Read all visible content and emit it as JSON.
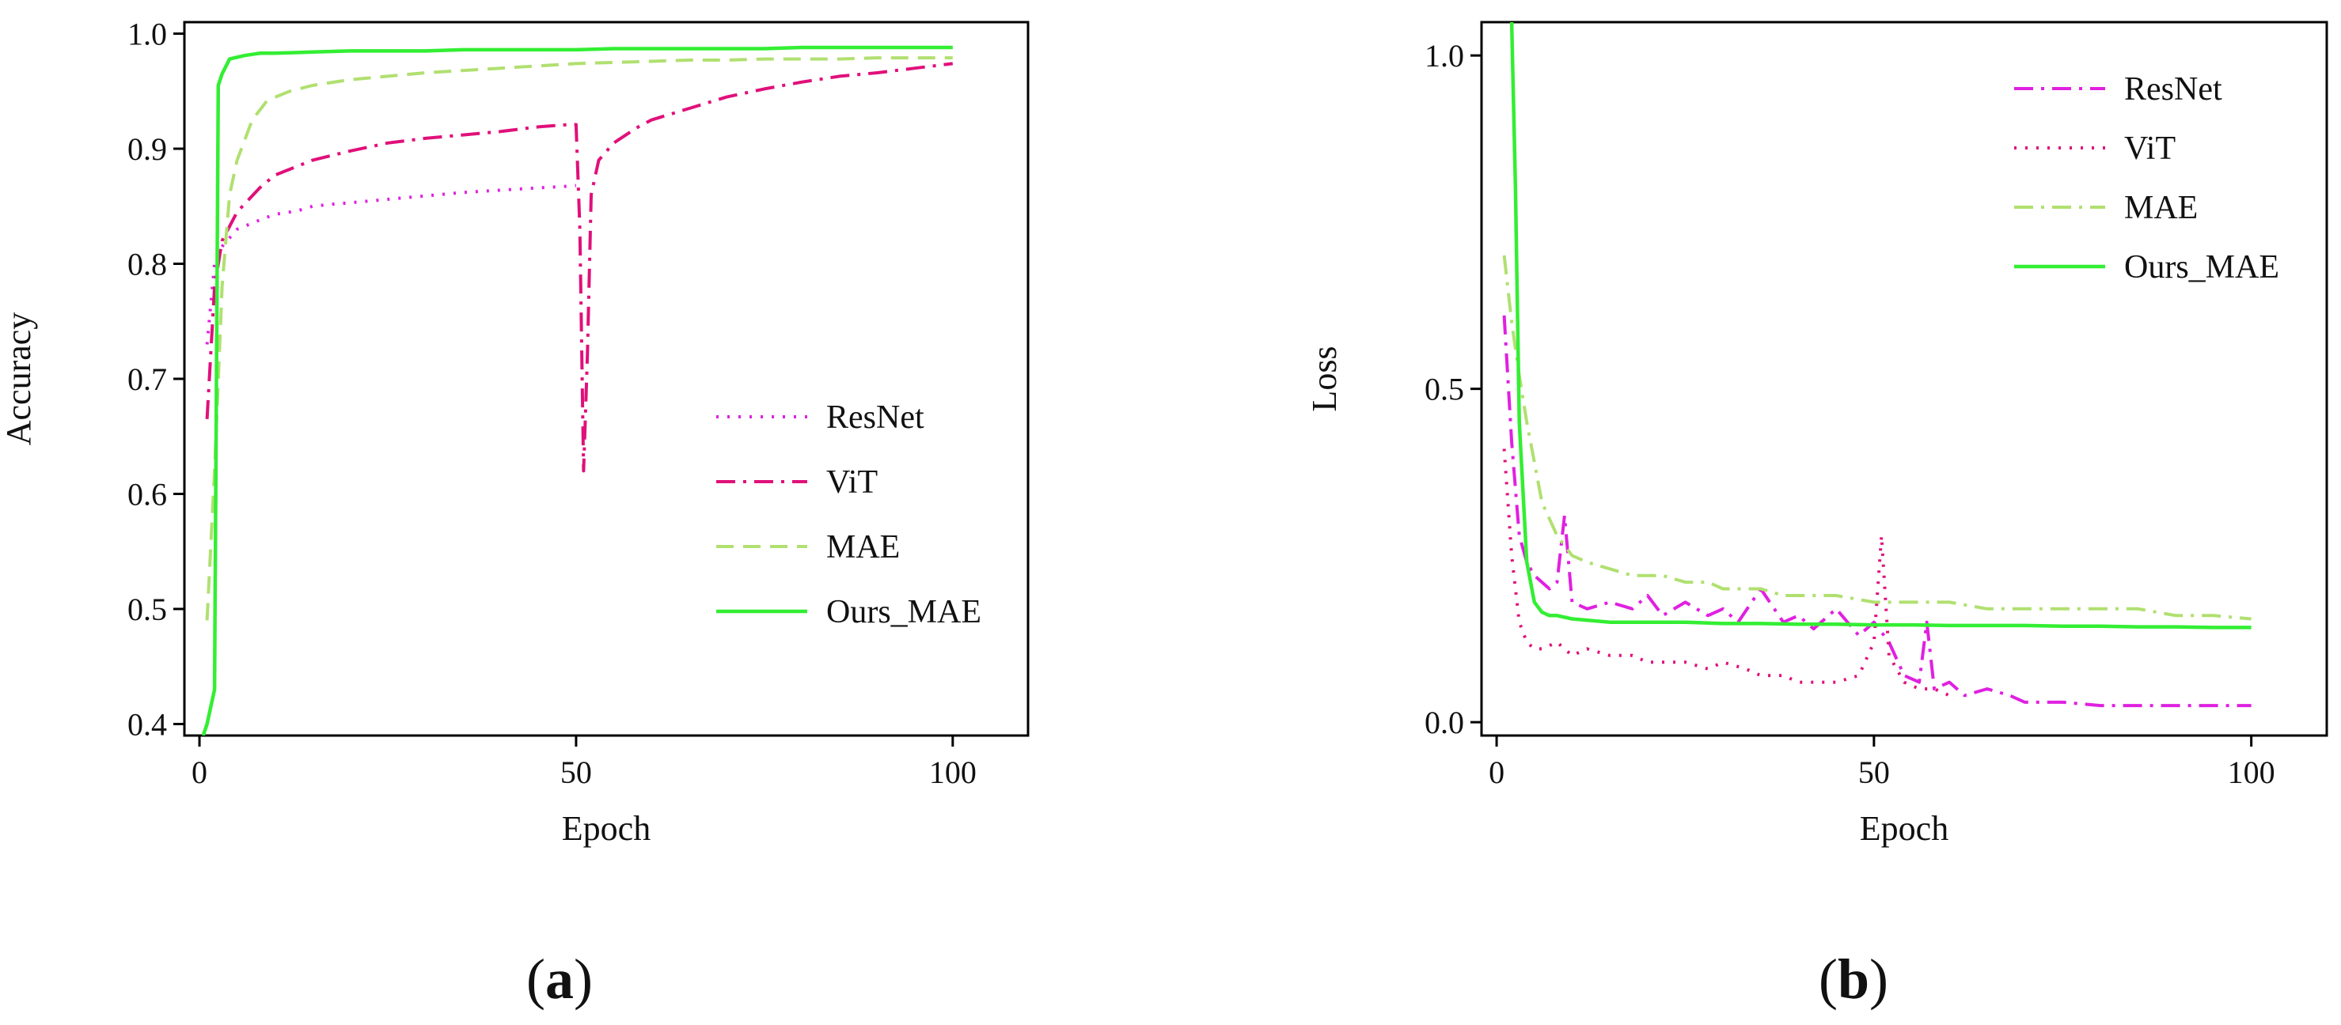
{
  "colors": {
    "resnet": "#e020e0",
    "vit": "#e0107a",
    "mae": "#b0e070",
    "ours": "#33ee33",
    "axis": "#000000"
  },
  "chart_data": [
    {
      "type": "line",
      "panel_label": {
        "open": "(",
        "letter": "a",
        "close": ")"
      },
      "xlabel": "Epoch",
      "ylabel": "Accuracy",
      "xlim": [
        -2,
        110
      ],
      "ylim": [
        0.39,
        1.01
      ],
      "xticks": [
        0,
        50,
        100
      ],
      "yticks": [
        0.4,
        0.5,
        0.6,
        0.7,
        0.8,
        0.9,
        1.0
      ],
      "ytick_labels": [
        "0.4",
        "0.5",
        "0.6",
        "0.7",
        "0.8",
        "0.9",
        "1.0"
      ],
      "legend_position": "center-right",
      "series": [
        {
          "name": "ResNet",
          "key": "resnet",
          "dash": "dot",
          "x": [
            1,
            2,
            3,
            5,
            8,
            10,
            13,
            15,
            18,
            20,
            25,
            30,
            35,
            40,
            45,
            48,
            50
          ],
          "y": [
            0.73,
            0.8,
            0.815,
            0.83,
            0.838,
            0.843,
            0.846,
            0.85,
            0.852,
            0.853,
            0.856,
            0.859,
            0.862,
            0.864,
            0.866,
            0.867,
            0.868
          ]
        },
        {
          "name": "ViT",
          "key": "vit",
          "dash": "dashdot",
          "x": [
            1,
            2,
            3,
            5,
            8,
            10,
            15,
            20,
            25,
            30,
            35,
            40,
            45,
            49,
            50,
            50.5,
            51,
            51.5,
            52,
            53,
            55,
            58,
            60,
            65,
            70,
            75,
            80,
            85,
            90,
            95,
            100
          ],
          "y": [
            0.665,
            0.78,
            0.82,
            0.845,
            0.866,
            0.877,
            0.89,
            0.898,
            0.905,
            0.909,
            0.912,
            0.915,
            0.919,
            0.921,
            0.921,
            0.83,
            0.62,
            0.72,
            0.86,
            0.89,
            0.905,
            0.918,
            0.925,
            0.935,
            0.945,
            0.952,
            0.958,
            0.963,
            0.966,
            0.97,
            0.974
          ]
        },
        {
          "name": "MAE",
          "key": "mae",
          "dash": "dash",
          "x": [
            1,
            2,
            3,
            4,
            5,
            7,
            9,
            12,
            15,
            20,
            25,
            30,
            35,
            40,
            45,
            50,
            55,
            60,
            65,
            70,
            75,
            80,
            85,
            90,
            95,
            100
          ],
          "y": [
            0.49,
            0.62,
            0.78,
            0.86,
            0.89,
            0.925,
            0.942,
            0.95,
            0.955,
            0.96,
            0.963,
            0.966,
            0.968,
            0.97,
            0.972,
            0.974,
            0.975,
            0.976,
            0.977,
            0.977,
            0.978,
            0.978,
            0.978,
            0.979,
            0.979,
            0.979
          ]
        },
        {
          "name": "Ours_MAE",
          "key": "ours",
          "dash": "solid",
          "x": [
            0.5,
            1,
            2,
            2.5,
            3,
            4,
            6,
            8,
            10,
            15,
            20,
            25,
            30,
            35,
            40,
            45,
            50,
            55,
            60,
            65,
            70,
            75,
            80,
            85,
            90,
            95,
            100
          ],
          "y": [
            0.39,
            0.4,
            0.43,
            0.955,
            0.965,
            0.978,
            0.981,
            0.983,
            0.983,
            0.984,
            0.985,
            0.985,
            0.985,
            0.986,
            0.986,
            0.986,
            0.986,
            0.987,
            0.987,
            0.987,
            0.987,
            0.987,
            0.988,
            0.988,
            0.988,
            0.988,
            0.988
          ]
        }
      ]
    },
    {
      "type": "line",
      "panel_label": {
        "open": "(",
        "letter": "b",
        "close": ")"
      },
      "xlabel": "Epoch",
      "ylabel": "Loss",
      "xlim": [
        -2,
        110
      ],
      "ylim": [
        -0.02,
        1.05
      ],
      "xticks": [
        0,
        50,
        100
      ],
      "yticks": [
        0.0,
        0.5,
        1.0
      ],
      "ytick_labels": [
        "0.0",
        "0.5",
        "1.0"
      ],
      "legend_position": "top-right",
      "series": [
        {
          "name": "ResNet",
          "key": "resnet",
          "dash": "dashdot",
          "x": [
            1,
            2,
            3,
            4,
            5,
            6,
            7,
            8,
            9,
            10,
            12,
            15,
            18,
            20,
            22,
            25,
            28,
            30,
            32,
            35,
            38,
            40,
            42,
            45,
            48,
            50,
            52,
            54,
            56,
            57,
            58,
            60,
            62,
            65,
            68,
            70,
            75,
            80,
            85,
            90,
            95,
            100
          ],
          "y": [
            0.61,
            0.42,
            0.28,
            0.24,
            0.22,
            0.21,
            0.2,
            0.21,
            0.31,
            0.18,
            0.17,
            0.18,
            0.17,
            0.19,
            0.16,
            0.18,
            0.16,
            0.17,
            0.15,
            0.2,
            0.15,
            0.16,
            0.14,
            0.17,
            0.13,
            0.15,
            0.12,
            0.07,
            0.06,
            0.15,
            0.05,
            0.06,
            0.04,
            0.05,
            0.04,
            0.03,
            0.03,
            0.025,
            0.025,
            0.025,
            0.025,
            0.025
          ]
        },
        {
          "name": "ViT",
          "key": "vit",
          "dash": "dot",
          "x": [
            1,
            2,
            3,
            4,
            5,
            6,
            8,
            10,
            12,
            15,
            18,
            20,
            22,
            25,
            28,
            30,
            33,
            35,
            38,
            40,
            43,
            45,
            48,
            50,
            51,
            52,
            54,
            56,
            58,
            60
          ],
          "y": [
            0.41,
            0.25,
            0.15,
            0.12,
            0.11,
            0.11,
            0.12,
            0.1,
            0.11,
            0.1,
            0.1,
            0.09,
            0.09,
            0.09,
            0.08,
            0.09,
            0.08,
            0.07,
            0.07,
            0.06,
            0.06,
            0.06,
            0.07,
            0.12,
            0.28,
            0.1,
            0.06,
            0.05,
            0.05,
            0.04
          ]
        },
        {
          "name": "MAE",
          "key": "mae",
          "dash": "dashdot",
          "x": [
            1,
            2,
            3,
            4,
            5,
            6,
            8,
            10,
            12,
            15,
            18,
            20,
            22,
            25,
            28,
            30,
            33,
            35,
            38,
            40,
            45,
            50,
            55,
            60,
            65,
            70,
            75,
            80,
            85,
            90,
            95,
            100
          ],
          "y": [
            0.7,
            0.6,
            0.52,
            0.45,
            0.39,
            0.33,
            0.28,
            0.25,
            0.24,
            0.23,
            0.22,
            0.22,
            0.22,
            0.21,
            0.21,
            0.2,
            0.2,
            0.2,
            0.19,
            0.19,
            0.19,
            0.18,
            0.18,
            0.18,
            0.17,
            0.17,
            0.17,
            0.17,
            0.17,
            0.16,
            0.16,
            0.155
          ]
        },
        {
          "name": "Ours_MAE",
          "key": "ours",
          "dash": "solid",
          "x": [
            2,
            2.5,
            3,
            4,
            5,
            6,
            7,
            8,
            10,
            15,
            20,
            25,
            30,
            35,
            40,
            45,
            50,
            55,
            60,
            65,
            70,
            75,
            80,
            85,
            90,
            95,
            100
          ],
          "y": [
            1.05,
            0.8,
            0.45,
            0.24,
            0.18,
            0.165,
            0.16,
            0.16,
            0.155,
            0.15,
            0.15,
            0.15,
            0.148,
            0.148,
            0.147,
            0.147,
            0.146,
            0.146,
            0.145,
            0.145,
            0.145,
            0.144,
            0.144,
            0.143,
            0.143,
            0.142,
            0.142
          ]
        }
      ]
    }
  ]
}
